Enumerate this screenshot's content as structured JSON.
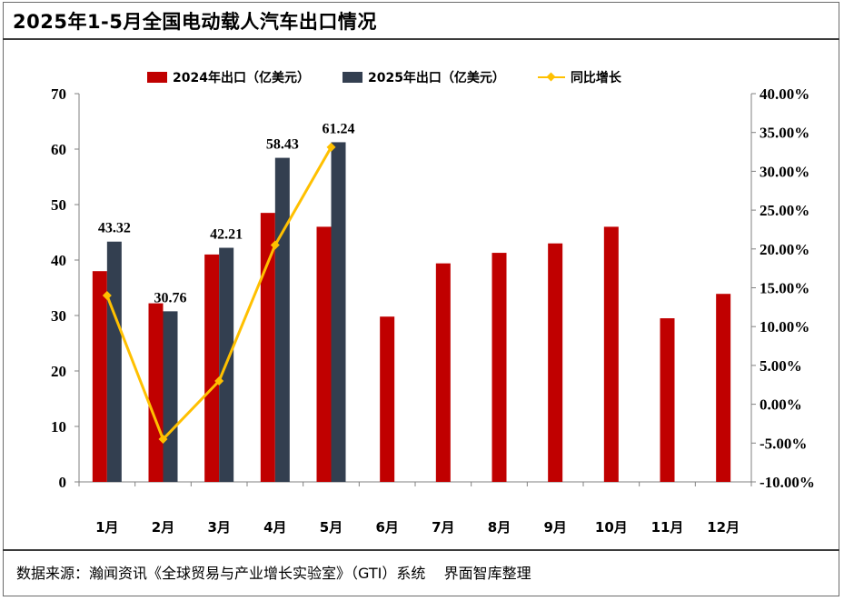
{
  "title": "2025年1-5月全国电动载人汽车出口情况",
  "source_text": "数据来源：瀚闻资讯《全球贸易与产业增长实验室》（GTI）系统    界面智库整理",
  "colors": {
    "s2024": "#c00000",
    "s2025": "#333f50",
    "growth": "#ffc000"
  },
  "chart_data": {
    "type": "bar",
    "categories": [
      "1月",
      "2月",
      "3月",
      "4月",
      "5月",
      "6月",
      "7月",
      "8月",
      "9月",
      "10月",
      "11月",
      "12月"
    ],
    "series": [
      {
        "name": "2024年出口（亿美元）",
        "type": "bar",
        "axis": "left",
        "values": [
          38.0,
          32.2,
          41.0,
          48.5,
          46.0,
          29.8,
          39.4,
          41.3,
          43.0,
          46.0,
          29.5,
          33.9
        ]
      },
      {
        "name": "2025年出口（亿美元）",
        "type": "bar",
        "axis": "left",
        "values": [
          43.32,
          30.76,
          42.21,
          58.43,
          61.24,
          null,
          null,
          null,
          null,
          null,
          null,
          null
        ],
        "data_labels": [
          "43.32",
          "30.76",
          "42.21",
          "58.43",
          "61.24"
        ]
      },
      {
        "name": "同比增长",
        "type": "line",
        "axis": "right",
        "values": [
          0.14,
          -0.045,
          0.03,
          0.205,
          0.331,
          null,
          null,
          null,
          null,
          null,
          null,
          null
        ]
      }
    ],
    "ylim_left": [
      0,
      70
    ],
    "yticks_left": [
      "0",
      "10",
      "20",
      "30",
      "40",
      "50",
      "60",
      "70"
    ],
    "ylim_right": [
      -0.1,
      0.4
    ],
    "yticks_right": [
      "-10.00%",
      "-5.00%",
      "0.00%",
      "5.00%",
      "10.00%",
      "15.00%",
      "20.00%",
      "25.00%",
      "30.00%",
      "35.00%",
      "40.00%"
    ],
    "legend_position": "top",
    "grid": false
  }
}
